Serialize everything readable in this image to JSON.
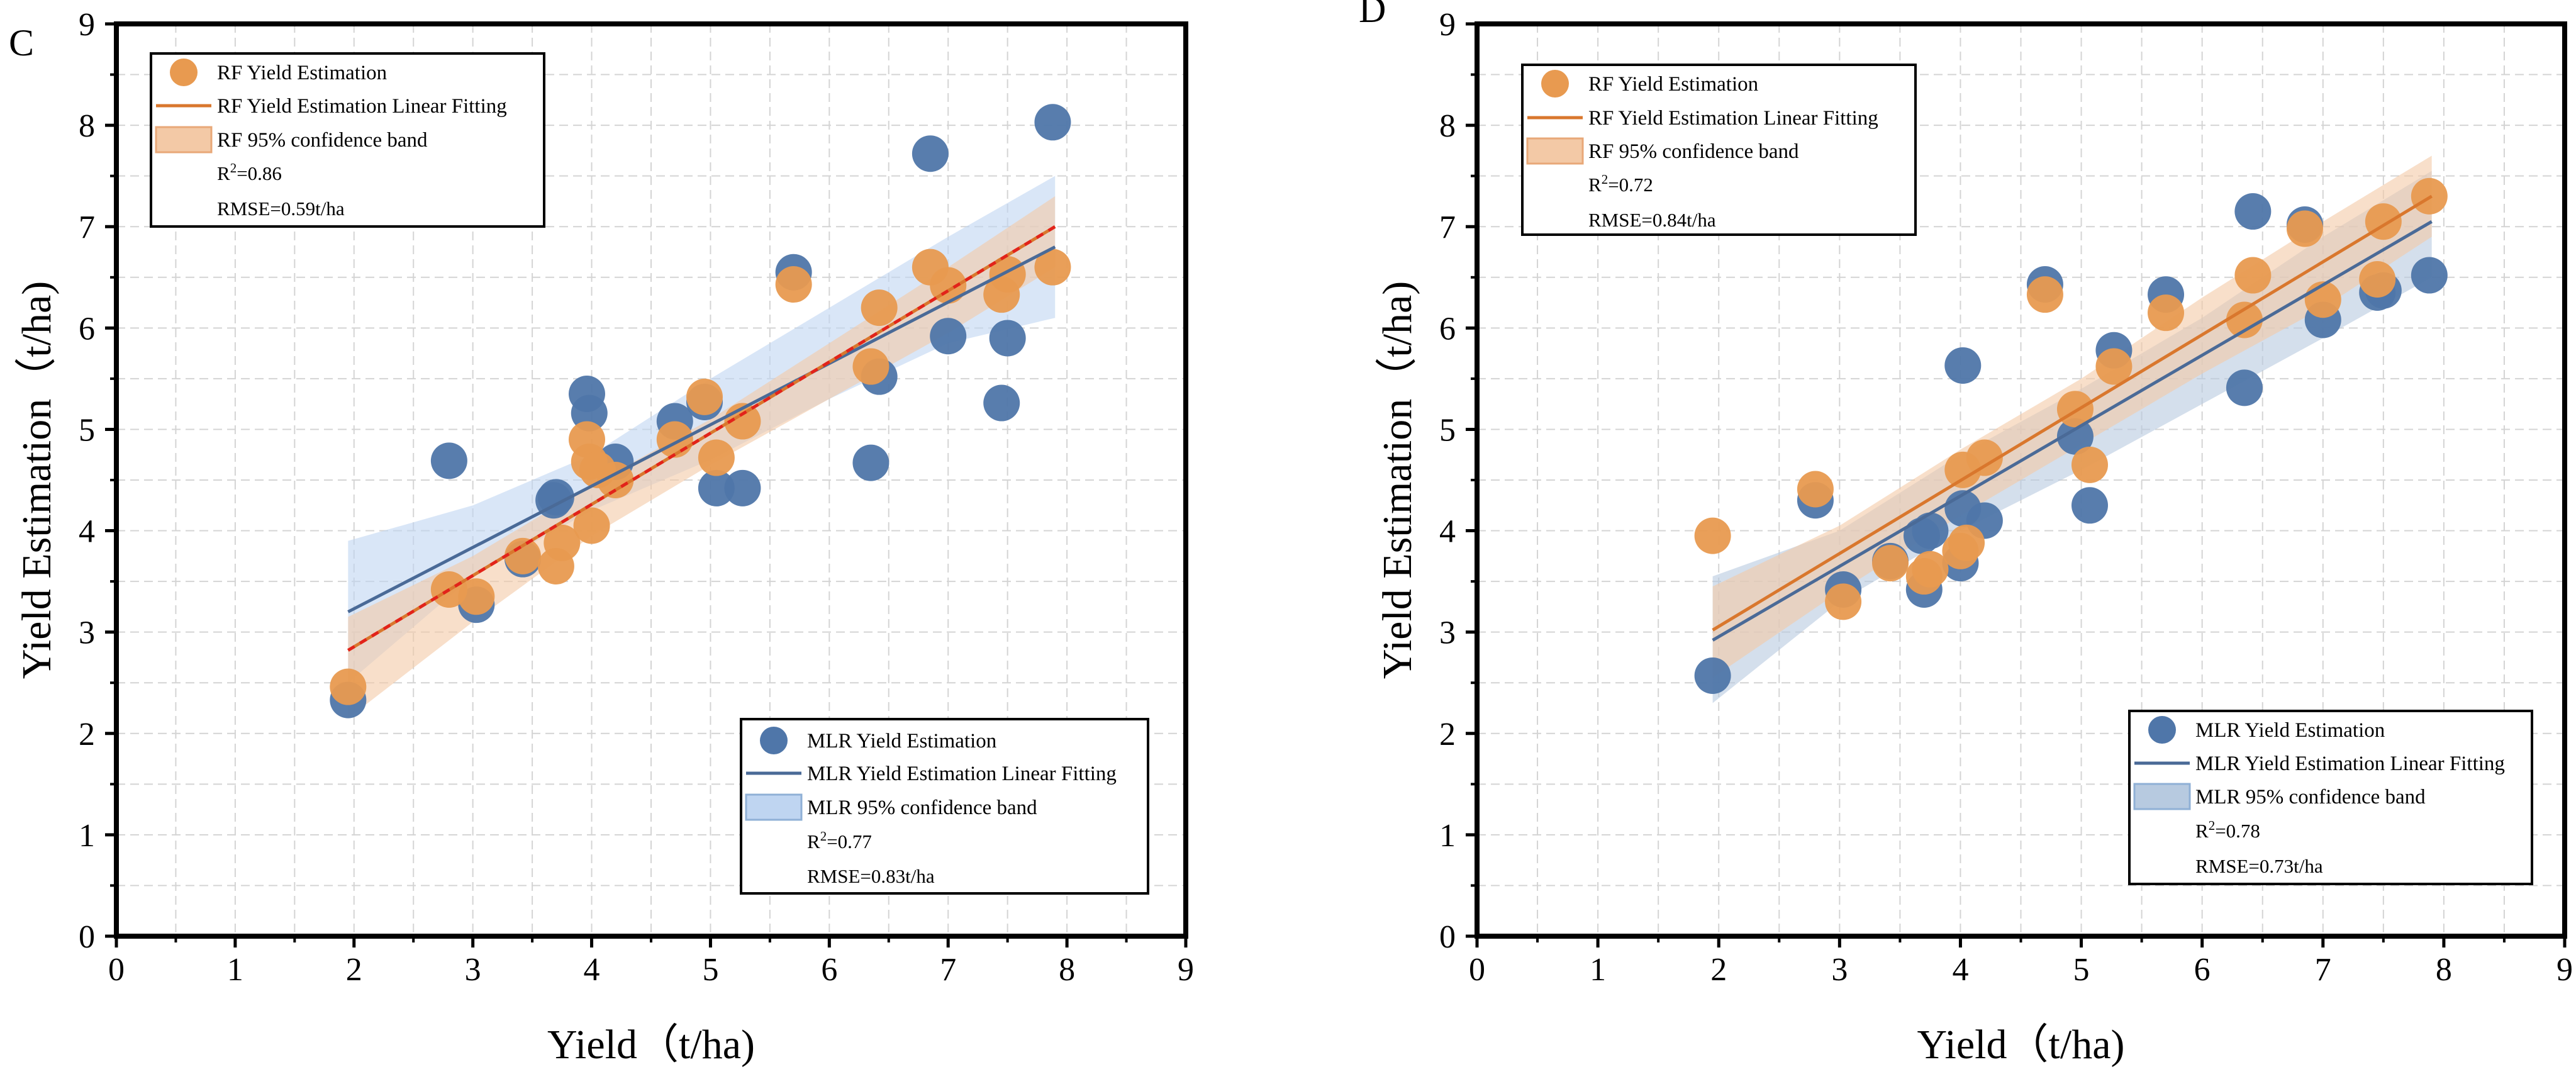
{
  "chart_data": [
    {
      "type": "scatter",
      "panel_label": "C",
      "xlabel": "Yield（t/ha)",
      "ylabel": "Yield Estimation（t/ha)",
      "xlim": [
        0,
        9
      ],
      "ylim": [
        0,
        9
      ],
      "xticks": [
        "0",
        "1",
        "2",
        "3",
        "4",
        "5",
        "6",
        "7",
        "8",
        "9"
      ],
      "yticks": [
        "0",
        "1",
        "2",
        "3",
        "4",
        "5",
        "6",
        "7",
        "8",
        "9"
      ],
      "grid": true,
      "series": [
        {
          "name": "MLR Yield Estimation",
          "color": "#4F76A9",
          "points": [
            [
              1.95,
              2.33
            ],
            [
              2.8,
              4.69
            ],
            [
              3.03,
              3.27
            ],
            [
              3.42,
              3.72
            ],
            [
              3.7,
              4.33
            ],
            [
              3.68,
              4.3
            ],
            [
              3.96,
              5.35
            ],
            [
              3.98,
              5.16
            ],
            [
              4.2,
              4.68
            ],
            [
              4.7,
              5.08
            ],
            [
              4.95,
              5.27
            ],
            [
              5.05,
              4.42
            ],
            [
              5.27,
              4.42
            ],
            [
              5.7,
              6.55
            ],
            [
              6.35,
              4.67
            ],
            [
              6.42,
              5.52
            ],
            [
              6.85,
              7.72
            ],
            [
              7.0,
              5.92
            ],
            [
              7.45,
              5.26
            ],
            [
              7.5,
              5.9
            ],
            [
              7.88,
              8.03
            ]
          ],
          "fit": {
            "x": [
              1.95,
              7.9
            ],
            "y": [
              3.2,
              6.8
            ]
          },
          "band": {
            "x": [
              1.95,
              3.0,
              4.0,
              5.0,
              6.0,
              7.0,
              7.9
            ],
            "upper": [
              3.9,
              4.25,
              4.75,
              5.5,
              6.2,
              6.9,
              7.5
            ],
            "lower": [
              2.5,
              3.55,
              4.2,
              4.7,
              5.3,
              5.85,
              6.1
            ],
            "color": "#BFD5F1"
          }
        },
        {
          "name": "RF Yield Estimation",
          "color": "#E89A50",
          "points": [
            [
              1.95,
              2.46
            ],
            [
              2.8,
              3.42
            ],
            [
              3.03,
              3.35
            ],
            [
              3.42,
              3.75
            ],
            [
              3.7,
              3.65
            ],
            [
              3.75,
              3.88
            ],
            [
              3.96,
              4.9
            ],
            [
              3.98,
              4.68
            ],
            [
              4.0,
              4.05
            ],
            [
              4.05,
              4.6
            ],
            [
              4.2,
              4.5
            ],
            [
              4.7,
              4.9
            ],
            [
              4.95,
              5.32
            ],
            [
              5.05,
              4.72
            ],
            [
              5.27,
              5.08
            ],
            [
              5.7,
              6.43
            ],
            [
              6.35,
              5.62
            ],
            [
              6.42,
              6.2
            ],
            [
              6.85,
              6.6
            ],
            [
              7.0,
              6.42
            ],
            [
              7.45,
              6.33
            ],
            [
              7.5,
              6.53
            ],
            [
              7.88,
              6.6
            ]
          ],
          "fit": {
            "x": [
              1.95,
              7.9
            ],
            "y": [
              2.82,
              7.0
            ]
          },
          "band": {
            "x": [
              1.95,
              3.0,
              4.0,
              5.0,
              6.0,
              7.0,
              7.9
            ],
            "upper": [
              3.15,
              3.75,
              4.45,
              5.1,
              5.85,
              6.6,
              7.3
            ],
            "lower": [
              2.15,
              3.1,
              3.95,
              4.65,
              5.3,
              5.95,
              6.6
            ],
            "color": "#F3C9A6"
          }
        }
      ],
      "legends": [
        {
          "position": "top-left",
          "entries": [
            "RF Yield Estimation",
            "RF Yield Estimation Linear Fitting",
            "RF 95% confidence band"
          ],
          "r2": "=0.86",
          "rmse": "RMSE=0.59t/ha"
        },
        {
          "position": "bottom-right",
          "entries": [
            "MLR Yield Estimation",
            "MLR Yield Estimation Linear Fitting",
            "MLR 95% confidence band"
          ],
          "r2": "=0.77",
          "rmse": "RMSE=0.83t/ha"
        }
      ]
    },
    {
      "type": "scatter",
      "panel_label": "D",
      "xlabel": "Yield（t/ha)",
      "ylabel": "Yield Estimation（t/ha)",
      "xlim": [
        0,
        9
      ],
      "ylim": [
        0,
        9
      ],
      "xticks": [
        "0",
        "1",
        "2",
        "3",
        "4",
        "5",
        "6",
        "7",
        "8",
        "9"
      ],
      "yticks": [
        "0",
        "1",
        "2",
        "3",
        "4",
        "5",
        "6",
        "7",
        "8",
        "9"
      ],
      "grid": true,
      "series": [
        {
          "name": "MLR Yield Estimation",
          "color": "#4F76A9",
          "points": [
            [
              1.95,
              2.57
            ],
            [
              2.8,
              4.3
            ],
            [
              3.03,
              3.42
            ],
            [
              3.42,
              3.7
            ],
            [
              3.68,
              3.95
            ],
            [
              3.7,
              3.42
            ],
            [
              3.75,
              4.0
            ],
            [
              4.0,
              3.68
            ],
            [
              4.02,
              4.22
            ],
            [
              4.02,
              5.63
            ],
            [
              4.2,
              4.1
            ],
            [
              4.7,
              6.43
            ],
            [
              4.95,
              4.93
            ],
            [
              5.07,
              4.25
            ],
            [
              5.27,
              5.78
            ],
            [
              5.7,
              6.33
            ],
            [
              6.35,
              5.41
            ],
            [
              6.42,
              7.15
            ],
            [
              6.85,
              7.02
            ],
            [
              7.0,
              6.08
            ],
            [
              7.45,
              6.35
            ],
            [
              7.5,
              6.37
            ],
            [
              7.88,
              6.52
            ]
          ],
          "fit": {
            "x": [
              1.95,
              7.9
            ],
            "y": [
              2.92,
              7.05
            ]
          },
          "band": {
            "x": [
              1.95,
              3.0,
              4.0,
              5.0,
              6.0,
              7.0,
              7.9
            ],
            "upper": [
              3.55,
              4.0,
              4.75,
              5.4,
              6.1,
              6.9,
              7.55
            ],
            "lower": [
              2.3,
              3.3,
              4.0,
              4.6,
              5.25,
              5.9,
              6.5
            ],
            "color": "#B7CAE0"
          }
        },
        {
          "name": "RF Yield Estimation",
          "color": "#E89A50",
          "points": [
            [
              1.95,
              3.95
            ],
            [
              2.8,
              4.41
            ],
            [
              3.03,
              3.3
            ],
            [
              3.42,
              3.68
            ],
            [
              3.7,
              3.55
            ],
            [
              3.75,
              3.62
            ],
            [
              4.0,
              3.8
            ],
            [
              4.02,
              4.6
            ],
            [
              4.05,
              3.88
            ],
            [
              4.2,
              4.72
            ],
            [
              4.7,
              6.33
            ],
            [
              4.95,
              5.2
            ],
            [
              5.07,
              4.65
            ],
            [
              5.27,
              5.62
            ],
            [
              5.7,
              6.15
            ],
            [
              6.35,
              6.08
            ],
            [
              6.42,
              6.52
            ],
            [
              6.85,
              6.98
            ],
            [
              7.0,
              6.28
            ],
            [
              7.45,
              6.48
            ],
            [
              7.5,
              7.05
            ],
            [
              7.88,
              7.3
            ]
          ],
          "fit": {
            "x": [
              1.95,
              7.9
            ],
            "y": [
              3.02,
              7.3
            ]
          },
          "band": {
            "x": [
              1.95,
              3.0,
              4.0,
              5.0,
              6.0,
              7.0,
              7.9
            ],
            "upper": [
              3.45,
              4.05,
              4.8,
              5.5,
              6.3,
              7.05,
              7.7
            ],
            "lower": [
              2.55,
              3.4,
              4.15,
              4.85,
              5.55,
              6.2,
              6.9
            ],
            "color": "#F3C9A6"
          }
        }
      ],
      "legends": [
        {
          "position": "top-left",
          "entries": [
            "RF Yield Estimation",
            "RF Yield Estimation Linear Fitting",
            "RF 95% confidence band"
          ],
          "r2": "=0.72",
          "rmse": "RMSE=0.84t/ha"
        },
        {
          "position": "bottom-right",
          "entries": [
            "MLR Yield Estimation",
            "MLR Yield Estimation Linear Fitting",
            "MLR 95% confidence band"
          ],
          "r2": "=0.78",
          "rmse": "RMSE=0.73t/ha"
        }
      ]
    }
  ]
}
